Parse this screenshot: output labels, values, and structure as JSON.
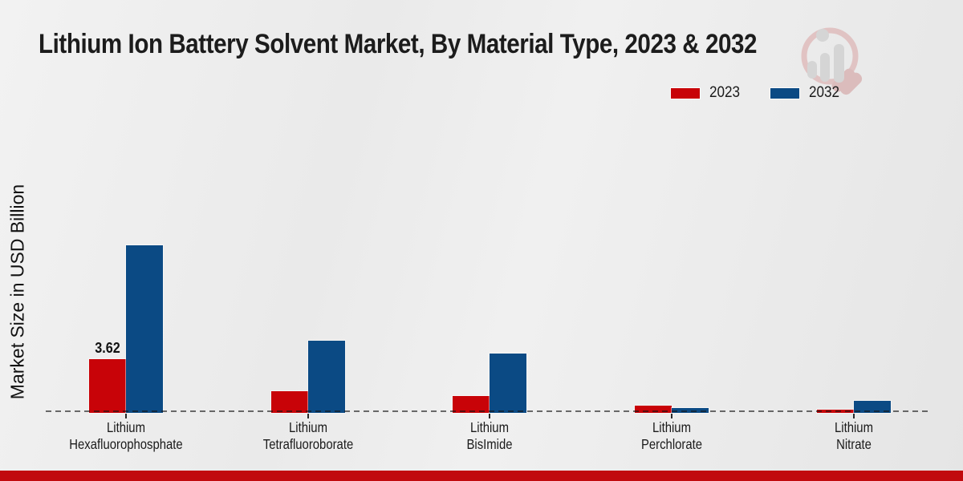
{
  "chart": {
    "title": "Lithium Ion Battery Solvent Market, By Material Type, 2023 & 2032"
  },
  "legend": {
    "items": [
      "2023",
      "2032"
    ],
    "position": "top-right"
  },
  "branding": {
    "watermark_icon": "magnifier-bar-chart-logo",
    "footer_band_color": "#c10archive"
  },
  "chart_data": {
    "type": "bar",
    "title": "Lithium Ion Battery Solvent Market, By Material Type, 2023 & 2032",
    "xlabel": "",
    "ylabel": "Market Size in USD Billion",
    "ylim": [
      0,
      12
    ],
    "grid": false,
    "baseline_style": "dashed",
    "legend_position": "top-right",
    "categories": [
      {
        "label": "Lithium Hexafluorophosphate",
        "line1": "Lithium",
        "line2": "Hexafluorophosphate"
      },
      {
        "label": "Lithium Tetrafluoroborate",
        "line1": "Lithium",
        "line2": "Tetrafluoroborate"
      },
      {
        "label": "Lithium BisImide",
        "line1": "Lithium",
        "line2": "BisImide"
      },
      {
        "label": "Lithium Perchlorate",
        "line1": "Lithium",
        "line2": "Perchlorate"
      },
      {
        "label": "Lithium Nitrate",
        "line1": "Lithium",
        "line2": "Nitrate"
      }
    ],
    "series": [
      {
        "name": "2023",
        "color": "#c80308",
        "values": [
          3.62,
          1.45,
          1.15,
          0.5,
          0.2
        ]
      },
      {
        "name": "2032",
        "color": "#0b4a84",
        "values": [
          11.3,
          4.85,
          4.0,
          0.32,
          0.8
        ]
      }
    ],
    "value_labels": [
      {
        "text": "3.62",
        "series": "2023",
        "category": "Lithium Hexafluorophosphate"
      }
    ],
    "footer_band_color": "#c10a0e"
  }
}
